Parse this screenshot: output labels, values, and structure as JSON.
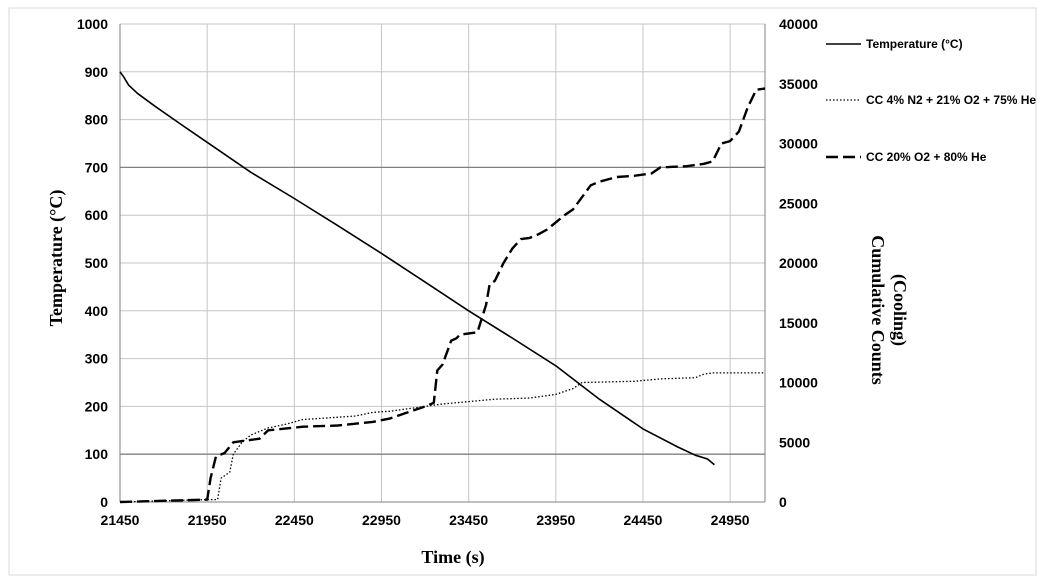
{
  "chart_data": {
    "type": "line",
    "title": "",
    "xlabel": "Time (s)",
    "ylabel": "Temperature (°C)",
    "y2label_line1": "Cumulative Counts",
    "y2label_line2": "(Cooling)",
    "xlim": [
      21450,
      25150
    ],
    "ylim": [
      0,
      1000
    ],
    "y2lim": [
      0,
      40000
    ],
    "x_ticks": [
      21450,
      21950,
      22450,
      22950,
      23450,
      23950,
      24450,
      24950
    ],
    "y_ticks": [
      0,
      100,
      200,
      300,
      400,
      500,
      600,
      700,
      800,
      900,
      1000
    ],
    "y2_ticks": [
      0,
      5000,
      10000,
      15000,
      20000,
      25000,
      30000,
      35000,
      40000
    ],
    "grid": true,
    "legend_position": "right",
    "series": [
      {
        "name": "Temperature (°C)",
        "axis": "left",
        "style": "solid",
        "color": "#000000",
        "x": [
          21450,
          21470,
          21500,
          21550,
          21650,
          21800,
          22000,
          22200,
          22450,
          22700,
          22950,
          23200,
          23450,
          23700,
          23950,
          24200,
          24450,
          24650,
          24750,
          24820,
          24860
        ],
        "y": [
          900,
          890,
          872,
          855,
          828,
          790,
          740,
          690,
          635,
          578,
          520,
          460,
          400,
          343,
          285,
          215,
          153,
          115,
          98,
          90,
          78
        ]
      },
      {
        "name": "CC 4% N2 + 21% O2 + 75% He",
        "axis": "right",
        "style": "dotted",
        "color": "#000000",
        "x": [
          21450,
          21950,
          22010,
          22030,
          22080,
          22100,
          22150,
          22200,
          22300,
          22400,
          22500,
          22600,
          22700,
          22800,
          22900,
          23000,
          23100,
          23200,
          23300,
          23450,
          23600,
          23800,
          23950,
          24050,
          24100,
          24400,
          24550,
          24750,
          24800,
          24850,
          25150
        ],
        "y": [
          0,
          200,
          200,
          2000,
          2500,
          4000,
          5000,
          5600,
          6200,
          6500,
          6900,
          7000,
          7100,
          7200,
          7500,
          7600,
          7800,
          8000,
          8200,
          8400,
          8600,
          8700,
          9000,
          9500,
          10000,
          10100,
          10300,
          10400,
          10700,
          10800,
          10800
        ]
      },
      {
        "name": "CC 20% O2 + 80% He",
        "axis": "right",
        "style": "dashed",
        "color": "#000000",
        "x": [
          21450,
          21950,
          21970,
          22000,
          22050,
          22100,
          22150,
          22250,
          22300,
          22500,
          22700,
          22900,
          23000,
          23100,
          23200,
          23250,
          23270,
          23300,
          23350,
          23380,
          23400,
          23500,
          23550,
          23570,
          23600,
          23650,
          23700,
          23750,
          23800,
          23850,
          23900,
          24000,
          24050,
          24150,
          24200,
          24300,
          24400,
          24500,
          24550,
          24700,
          24800,
          24850,
          24900,
          24950,
          25000,
          25050,
          25100,
          25150
        ],
        "y": [
          0,
          200,
          2000,
          3800,
          4100,
          5000,
          5100,
          5300,
          6000,
          6300,
          6400,
          6700,
          7000,
          7500,
          8000,
          8300,
          11000,
          11500,
          13500,
          13700,
          14000,
          14200,
          16500,
          18200,
          18500,
          20000,
          21200,
          22000,
          22100,
          22400,
          22800,
          24000,
          24500,
          26500,
          26800,
          27200,
          27300,
          27500,
          28000,
          28100,
          28300,
          28500,
          30000,
          30200,
          31000,
          33000,
          34500,
          34600
        ]
      }
    ]
  }
}
